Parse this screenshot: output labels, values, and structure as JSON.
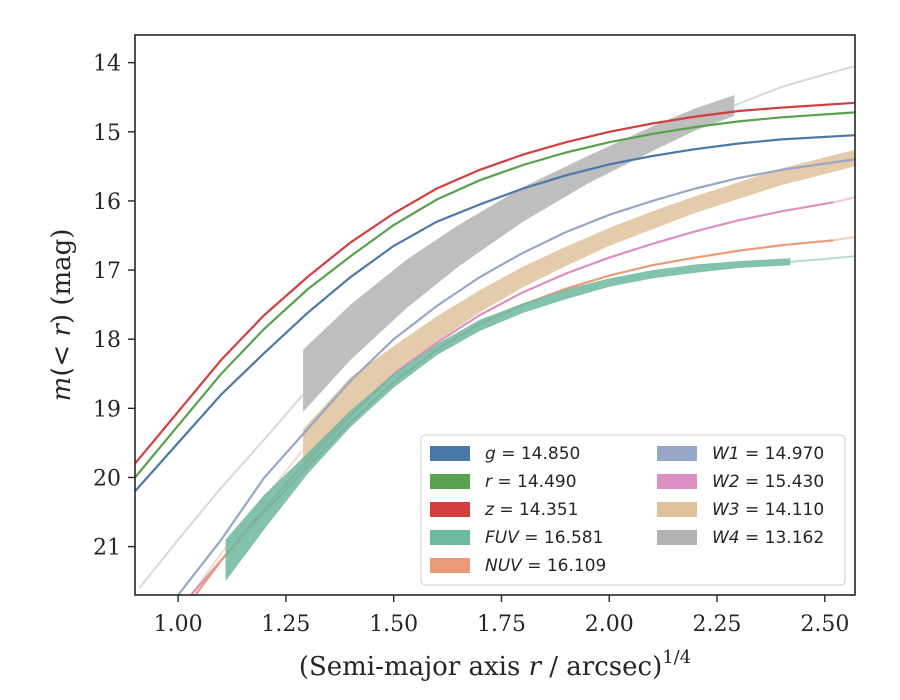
{
  "chart_data": {
    "type": "line",
    "xlabel_main": "(Semi-major axis ",
    "xlabel_var": "r",
    "xlabel_tail": " / arcsec)",
    "xlabel_sup": "1/4",
    "ylabel_main": "m",
    "ylabel_mid": "(< ",
    "ylabel_var": "r",
    "ylabel_tail": ") (mag)",
    "xlim": [
      0.9,
      2.57
    ],
    "ylim": [
      21.7,
      13.6
    ],
    "y_inverted": true,
    "grid": false,
    "legend_position": "lower-right",
    "x_ticks": [
      "1.00",
      "1.25",
      "1.50",
      "1.75",
      "2.00",
      "2.25",
      "2.50"
    ],
    "y_ticks": [
      "14",
      "15",
      "16",
      "17",
      "18",
      "19",
      "20",
      "21"
    ],
    "series": [
      {
        "name": "g",
        "value_label": " = 14.850",
        "color": "#4c78a8",
        "shade": "#4c78a8",
        "kind": "line",
        "x": [
          0.9,
          1.0,
          1.1,
          1.2,
          1.3,
          1.4,
          1.5,
          1.6,
          1.7,
          1.8,
          1.9,
          2.0,
          2.1,
          2.2,
          2.3,
          2.4,
          2.57
        ],
        "y": [
          20.2,
          19.5,
          18.8,
          18.2,
          17.62,
          17.1,
          16.65,
          16.3,
          16.05,
          15.82,
          15.63,
          15.47,
          15.35,
          15.25,
          15.17,
          15.11,
          15.05
        ]
      },
      {
        "name": "r",
        "value_label": " = 14.490",
        "color": "#59a14f",
        "shade": "#59a14f",
        "kind": "line",
        "x": [
          0.9,
          1.0,
          1.1,
          1.2,
          1.3,
          1.4,
          1.5,
          1.6,
          1.7,
          1.8,
          1.9,
          2.0,
          2.1,
          2.2,
          2.3,
          2.4,
          2.57
        ],
        "y": [
          20.0,
          19.25,
          18.5,
          17.85,
          17.28,
          16.8,
          16.35,
          15.98,
          15.7,
          15.48,
          15.3,
          15.15,
          15.03,
          14.93,
          14.85,
          14.79,
          14.72
        ]
      },
      {
        "name": "z",
        "value_label": " = 14.351",
        "color": "#d13f3f",
        "shade": "#d13f3f",
        "kind": "line",
        "x": [
          0.9,
          1.0,
          1.1,
          1.2,
          1.3,
          1.4,
          1.5,
          1.6,
          1.7,
          1.8,
          1.9,
          2.0,
          2.1,
          2.2,
          2.3,
          2.4,
          2.57
        ],
        "y": [
          19.8,
          19.05,
          18.3,
          17.65,
          17.1,
          16.6,
          16.18,
          15.82,
          15.55,
          15.33,
          15.15,
          15.0,
          14.88,
          14.78,
          14.7,
          14.65,
          14.58
        ]
      },
      {
        "name": "FUV",
        "value_label": " = 16.581",
        "color": "#6db9a0",
        "shade": "#6db9a0",
        "kind": "band",
        "x": [
          1.11,
          1.2,
          1.3,
          1.4,
          1.5,
          1.6,
          1.7,
          1.8,
          1.9,
          2.0,
          2.1,
          2.2,
          2.3,
          2.42
        ],
        "y": [
          21.2,
          20.5,
          19.8,
          19.15,
          18.6,
          18.15,
          17.8,
          17.55,
          17.35,
          17.18,
          17.06,
          16.98,
          16.92,
          16.88
        ],
        "band": [
          0.3,
          0.25,
          0.15,
          0.12,
          0.1,
          0.08,
          0.08,
          0.07,
          0.07,
          0.06,
          0.06,
          0.06,
          0.05,
          0.05
        ],
        "ext_x": [
          2.42,
          2.5,
          2.57
        ],
        "ext_y": [
          16.88,
          16.84,
          16.8
        ]
      },
      {
        "name": "NUV",
        "value_label": " = 16.109",
        "color": "#eb9a78",
        "shade": "#eb9a78",
        "kind": "line",
        "x": [
          1.04,
          1.1,
          1.2,
          1.3,
          1.4,
          1.5,
          1.6,
          1.7,
          1.8,
          1.9,
          2.0,
          2.1,
          2.2,
          2.3,
          2.4,
          2.52
        ],
        "y": [
          21.7,
          21.2,
          20.5,
          19.85,
          19.2,
          18.62,
          18.15,
          17.78,
          17.5,
          17.27,
          17.08,
          16.93,
          16.82,
          16.72,
          16.64,
          16.57
        ],
        "ext_x": [
          2.52,
          2.57
        ],
        "ext_y": [
          16.57,
          16.52
        ]
      },
      {
        "name": "W1",
        "value_label": " = 14.970",
        "color": "#98a7c8",
        "shade": "#98a7c8",
        "kind": "line",
        "x": [
          1.0,
          1.1,
          1.2,
          1.3,
          1.4,
          1.5,
          1.6,
          1.7,
          1.8,
          1.9,
          2.0,
          2.1,
          2.2,
          2.3,
          2.4,
          2.57
        ],
        "y": [
          21.7,
          20.9,
          20.0,
          19.3,
          18.6,
          18.0,
          17.52,
          17.1,
          16.75,
          16.45,
          16.2,
          16.0,
          15.82,
          15.67,
          15.55,
          15.4
        ]
      },
      {
        "name": "W2",
        "value_label": " = 15.430",
        "color": "#dc8fc3",
        "shade": "#dc8fc3",
        "kind": "line",
        "x": [
          1.03,
          1.1,
          1.2,
          1.3,
          1.4,
          1.5,
          1.6,
          1.7,
          1.8,
          1.9,
          2.0,
          2.1,
          2.2,
          2.3,
          2.4,
          2.52
        ],
        "y": [
          21.7,
          21.2,
          20.45,
          19.75,
          19.1,
          18.5,
          18.05,
          17.65,
          17.32,
          17.05,
          16.82,
          16.62,
          16.44,
          16.28,
          16.15,
          16.02
        ],
        "ext_x": [
          2.52,
          2.57
        ],
        "ext_y": [
          16.02,
          15.95
        ]
      },
      {
        "name": "W3",
        "value_label": " = 14.110",
        "color": "#dfc29a",
        "shade": "#dfc29a",
        "kind": "band",
        "x": [
          1.29,
          1.4,
          1.5,
          1.6,
          1.7,
          1.8,
          1.9,
          2.0,
          2.1,
          2.2,
          2.3,
          2.4,
          2.57
        ],
        "y": [
          19.6,
          18.8,
          18.3,
          17.85,
          17.45,
          17.1,
          16.8,
          16.52,
          16.28,
          16.05,
          15.85,
          15.65,
          15.38
        ],
        "band": [
          0.3,
          0.25,
          0.2,
          0.18,
          0.16,
          0.15,
          0.14,
          0.13,
          0.13,
          0.12,
          0.12,
          0.12,
          0.12
        ],
        "ext_x": [
          1.03,
          1.1,
          1.2,
          1.29
        ],
        "ext_y": [
          21.7,
          21.1,
          20.3,
          19.6
        ]
      },
      {
        "name": "W4",
        "value_label": " = 13.162",
        "color": "#b3b3b3",
        "shade": "#b3b3b3",
        "kind": "band",
        "x": [
          1.29,
          1.4,
          1.53,
          1.65,
          1.8,
          1.95,
          2.1,
          2.2,
          2.29
        ],
        "y": [
          18.6,
          17.9,
          17.2,
          16.65,
          16.05,
          15.55,
          15.1,
          14.82,
          14.62
        ],
        "band": [
          0.45,
          0.4,
          0.35,
          0.3,
          0.25,
          0.2,
          0.18,
          0.16,
          0.15
        ],
        "ext_x": [
          0.91,
          1.0,
          1.1,
          1.2,
          1.29
        ],
        "ext_y": [
          21.6,
          20.9,
          20.15,
          19.45,
          18.8
        ],
        "ext2_x": [
          2.29,
          2.4,
          2.5,
          2.57
        ],
        "ext2_y": [
          14.62,
          14.35,
          14.17,
          14.05
        ]
      }
    ]
  }
}
